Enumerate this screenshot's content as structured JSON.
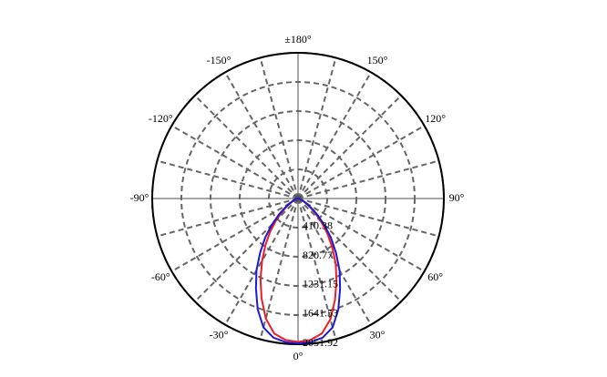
{
  "chart_data": {
    "type": "polar",
    "x": [
      -90,
      -85,
      -80,
      -75,
      -70,
      -65,
      -60,
      -55,
      -50,
      -45,
      -40,
      -35,
      -30,
      -25,
      -20,
      -15,
      -10,
      -5,
      0,
      5,
      10,
      15,
      20,
      25,
      30,
      35,
      40,
      45,
      50,
      55,
      60,
      65,
      70,
      75,
      80,
      85,
      90
    ],
    "series": [
      {
        "color": "#ee1c25",
        "values": [
          0,
          5,
          15,
          25,
          40,
          70,
          110,
          190,
          300,
          440,
          610,
          800,
          1010,
          1250,
          1500,
          1750,
          1930,
          2000,
          2020,
          2000,
          1930,
          1760,
          1520,
          1280,
          1060,
          840,
          640,
          460,
          310,
          195,
          115,
          70,
          40,
          25,
          15,
          5,
          0
        ]
      },
      {
        "color": "#1a1ad6",
        "values": [
          0,
          8,
          20,
          32,
          50,
          85,
          130,
          220,
          350,
          520,
          720,
          930,
          1170,
          1400,
          1660,
          1880,
          1990,
          2030,
          2040,
          2030,
          1990,
          1880,
          1660,
          1400,
          1170,
          930,
          720,
          520,
          350,
          220,
          130,
          85,
          50,
          32,
          20,
          8,
          0
        ]
      }
    ],
    "rlim": [
      0,
      2051.92
    ],
    "rticks": [
      410.38,
      820.77,
      1231.15,
      1641.53,
      2051.92
    ],
    "thetaticks": [
      {
        "value": -180,
        "label": "±180°"
      },
      {
        "value": -150,
        "label": "-150°"
      },
      {
        "value": -120,
        "label": "-120°"
      },
      {
        "value": -90,
        "label": "-90°"
      },
      {
        "value": -60,
        "label": "-60°"
      },
      {
        "value": -30,
        "label": "-30°"
      },
      {
        "value": 0,
        "label": "0°"
      },
      {
        "value": 30,
        "label": "30°"
      },
      {
        "value": 60,
        "label": "60°"
      },
      {
        "value": 90,
        "label": "90°"
      },
      {
        "value": 120,
        "label": "120°"
      },
      {
        "value": 150,
        "label": "150°"
      }
    ],
    "theta_gridlines": [
      -180,
      -165,
      -150,
      -135,
      -120,
      -105,
      -90,
      -75,
      -60,
      -45,
      -30,
      -15,
      0,
      15,
      30,
      45,
      60,
      75,
      90,
      105,
      120,
      135,
      150,
      165
    ],
    "grid": true
  }
}
